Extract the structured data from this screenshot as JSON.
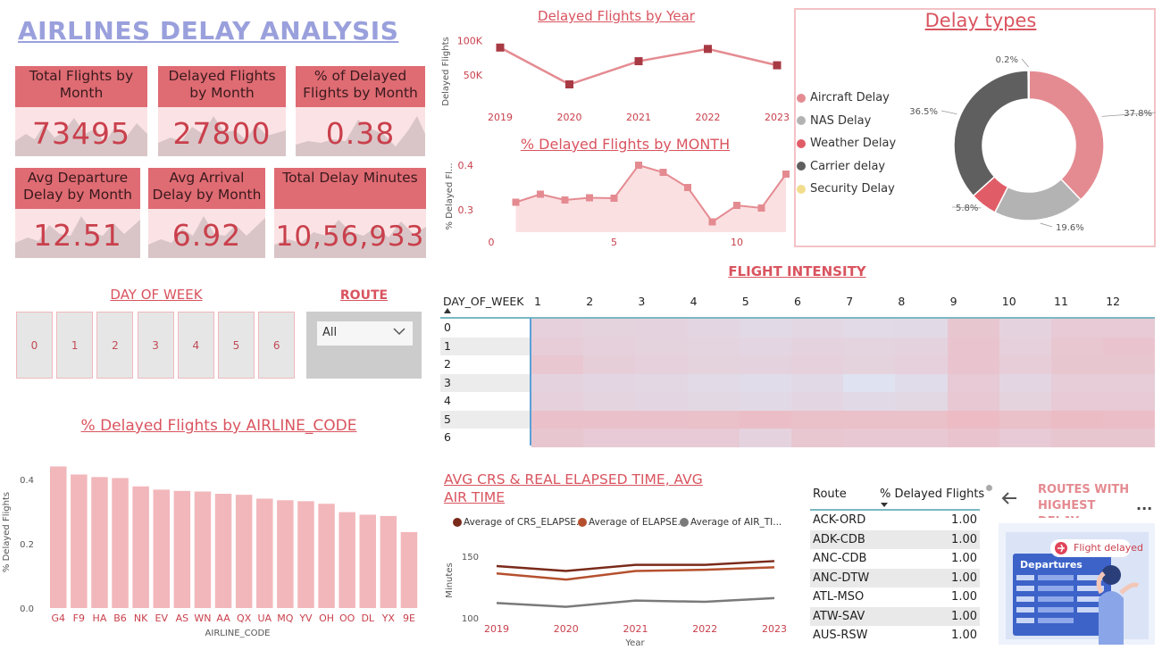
{
  "dashboard_title": "AIRLINES DELAY ANALYSIS",
  "kpis": [
    {
      "label": "Total Flights by Month",
      "value": "73495"
    },
    {
      "label": "Delayed Flights by Month",
      "value": "27800"
    },
    {
      "label": "% of Delayed Flights by Month",
      "value": "0.38"
    },
    {
      "label": "Avg Departure Delay by Month",
      "value": "12.51"
    },
    {
      "label": "Avg Arrival Delay by Month",
      "value": "6.92"
    },
    {
      "label": "Total Delay Minutes",
      "value": "10,56,933"
    }
  ],
  "filters": {
    "dow_title": "DAY OF WEEK",
    "dow_options": [
      "0",
      "1",
      "2",
      "3",
      "4",
      "5",
      "6"
    ],
    "route_title": "ROUTE",
    "route_selected": "All"
  },
  "delayed_by_year": {
    "title": "Delayed Flights by Year",
    "ylabel": "Delayed Flights",
    "yticks": [
      "100K",
      "50K"
    ],
    "chart_data": {
      "type": "line",
      "x": [
        "2019",
        "2020",
        "2021",
        "2022",
        "2023"
      ],
      "values": [
        90000,
        36000,
        70000,
        88000,
        64000
      ],
      "ylim": [
        0,
        110000
      ],
      "color": "#e48b91"
    }
  },
  "delayed_by_month": {
    "title": "% Delayed Flights by MONTH",
    "ylabel": "% Delayed Fl...",
    "yticks": [
      "0.4",
      "0.3"
    ],
    "xticks": [
      "0",
      "5",
      "10"
    ],
    "chart_data": {
      "type": "area",
      "x": [
        1,
        2,
        3,
        4,
        5,
        6,
        7,
        8,
        9,
        10,
        11,
        12
      ],
      "values": [
        0.317,
        0.335,
        0.322,
        0.327,
        0.326,
        0.4,
        0.384,
        0.35,
        0.273,
        0.31,
        0.304,
        0.38
      ],
      "ylim": [
        0.25,
        0.42
      ],
      "color": "#e48b91"
    }
  },
  "delay_types": {
    "title": "Delay types",
    "legend": [
      {
        "name": "Aircraft Delay",
        "color": "#e48b91"
      },
      {
        "name": "NAS Delay",
        "color": "#b3b3b3"
      },
      {
        "name": "Weather Delay",
        "color": "#e05d67"
      },
      {
        "name": "Carrier delay",
        "color": "#5f5f5f"
      },
      {
        "name": "Security Delay",
        "color": "#f2dd8e"
      }
    ],
    "chart_data": {
      "type": "pie",
      "labels": [
        "Aircraft Delay",
        "NAS Delay",
        "Weather Delay",
        "Carrier delay",
        "Security Delay"
      ],
      "values": [
        37.8,
        19.6,
        5.8,
        36.5,
        0.2
      ],
      "value_labels": [
        "37.8%",
        "19.6%",
        "5.8%",
        "36.5%",
        "0.2%"
      ]
    }
  },
  "flight_intensity": {
    "title": "FLIGHT INTENSITY",
    "row_header": "DAY_OF_WEEK",
    "columns": [
      "1",
      "2",
      "3",
      "4",
      "5",
      "6",
      "7",
      "8",
      "9",
      "10",
      "11",
      "12"
    ],
    "rows": [
      "0",
      "1",
      "2",
      "3",
      "4",
      "5",
      "6"
    ],
    "chart_data": {
      "type": "heatmap",
      "values": [
        [
          0.45,
          0.42,
          0.4,
          0.35,
          0.3,
          0.33,
          0.28,
          0.3,
          0.62,
          0.4,
          0.55,
          0.55
        ],
        [
          0.5,
          0.45,
          0.42,
          0.38,
          0.35,
          0.4,
          0.38,
          0.4,
          0.65,
          0.45,
          0.6,
          0.65
        ],
        [
          0.6,
          0.48,
          0.45,
          0.42,
          0.4,
          0.45,
          0.42,
          0.45,
          0.65,
          0.5,
          0.62,
          0.62
        ],
        [
          0.4,
          0.35,
          0.33,
          0.28,
          0.25,
          0.3,
          0.15,
          0.25,
          0.55,
          0.35,
          0.5,
          0.5
        ],
        [
          0.45,
          0.38,
          0.35,
          0.32,
          0.3,
          0.35,
          0.3,
          0.32,
          0.58,
          0.42,
          0.55,
          0.55
        ],
        [
          0.7,
          0.7,
          0.7,
          0.72,
          0.75,
          0.72,
          0.72,
          0.72,
          0.8,
          0.72,
          0.78,
          0.75
        ],
        [
          0.62,
          0.55,
          0.55,
          0.55,
          0.4,
          0.6,
          0.58,
          0.58,
          0.65,
          0.55,
          0.62,
          0.62
        ]
      ]
    }
  },
  "airline_chart": {
    "title": "% Delayed Flights by AIRLINE_CODE",
    "xlabel": "AIRLINE_CODE",
    "ylabel": "% Delayed Flights",
    "yticks": [
      "0.4",
      "0.2",
      "0.0"
    ],
    "chart_data": {
      "type": "bar",
      "categories": [
        "G4",
        "F9",
        "HA",
        "B6",
        "NK",
        "EV",
        "AS",
        "WN",
        "AA",
        "QX",
        "UA",
        "MQ",
        "YV",
        "OH",
        "OO",
        "DL",
        "YX",
        "9E"
      ],
      "values": [
        0.44,
        0.415,
        0.407,
        0.404,
        0.378,
        0.368,
        0.364,
        0.362,
        0.355,
        0.352,
        0.34,
        0.335,
        0.332,
        0.324,
        0.298,
        0.29,
        0.286,
        0.236
      ],
      "ylim": [
        0,
        0.48
      ],
      "color": "#f2b7bb"
    }
  },
  "elapsed_chart": {
    "title": "AVG CRS & REAL ELAPSED TIME, AVG AIR TIME",
    "xlabel": "Year",
    "ylabel": "Minutes",
    "yticks": [
      "150",
      "100"
    ],
    "chart_data": {
      "type": "line",
      "x": [
        "2019",
        "2020",
        "2021",
        "2022",
        "2023"
      ],
      "ylim": [
        100,
        155
      ],
      "series": [
        {
          "name": "Average of CRS_ELAPSE...",
          "color": "#7a2a1a",
          "values": [
            142,
            138,
            143,
            143,
            146
          ]
        },
        {
          "name": "Average of ELAPSE...",
          "color": "#b5502e",
          "values": [
            136,
            131,
            138,
            139,
            141
          ]
        },
        {
          "name": "Average of AIR_TI...",
          "color": "#7a7a7a",
          "values": [
            112,
            109,
            114,
            113,
            116
          ]
        }
      ]
    }
  },
  "routes_table": {
    "col1": "Route",
    "col2": "% Delayed Flights",
    "rows": [
      {
        "route": "ACK-ORD",
        "value": "1.00"
      },
      {
        "route": "ADK-CDB",
        "value": "1.00"
      },
      {
        "route": "ANC-CDB",
        "value": "1.00"
      },
      {
        "route": "ANC-DTW",
        "value": "1.00"
      },
      {
        "route": "ATL-MSO",
        "value": "1.00"
      },
      {
        "route": "ATW-SAV",
        "value": "1.00"
      },
      {
        "route": "AUS-RSW",
        "value": "1.00"
      }
    ]
  },
  "routes_card": {
    "title": "ROUTES WITH HIGHEST DELAY",
    "badge": "Flight delayed",
    "board": "Departures",
    "more": "..."
  }
}
